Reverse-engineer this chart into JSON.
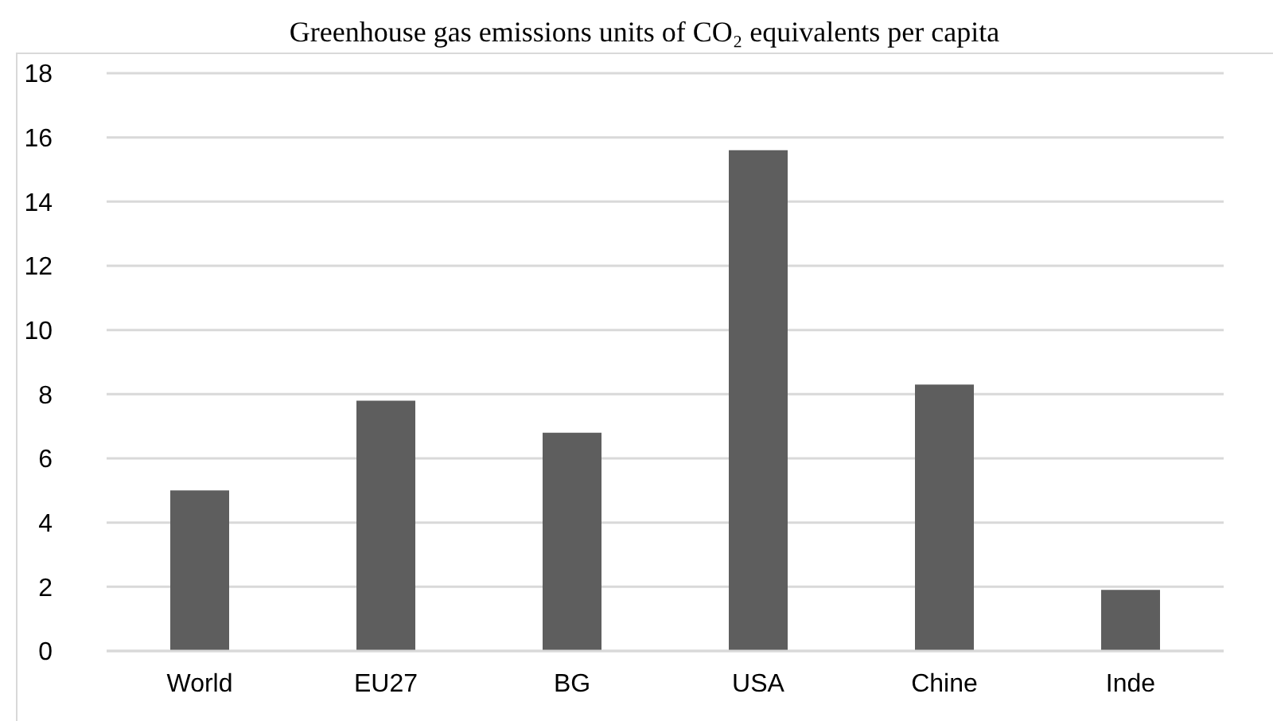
{
  "chart_data": {
    "type": "bar",
    "title": "Greenhouse gas emissions units of CO₂ equivalents per capita",
    "categories": [
      "World",
      "EU27",
      "BG",
      "USA",
      "Chine",
      "Inde"
    ],
    "values": [
      5.0,
      7.8,
      6.8,
      15.6,
      8.3,
      1.9
    ],
    "color": "#5e5e5e",
    "ylim": [
      0,
      18
    ],
    "yticks": [
      0,
      2,
      4,
      6,
      8,
      10,
      12,
      14,
      16,
      18
    ],
    "grid": "y",
    "legend": false
  }
}
